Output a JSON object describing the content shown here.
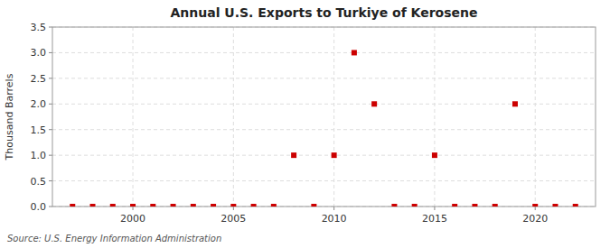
{
  "chart_data": {
    "type": "scatter",
    "title": "Annual U.S. Exports to Turkiye of Kerosene",
    "y_label": "Thousand Barrels",
    "annotation": "Source: U.S. Energy Information Administration",
    "x": [
      1997,
      1998,
      1999,
      2000,
      2001,
      2002,
      2003,
      2004,
      2005,
      2006,
      2007,
      2008,
      2009,
      2010,
      2011,
      2012,
      2013,
      2014,
      2015,
      2016,
      2017,
      2018,
      2019,
      2020,
      2021,
      2022
    ],
    "values": [
      0,
      0,
      0,
      0,
      0,
      0,
      0,
      0,
      0,
      0,
      0,
      1,
      0,
      1,
      3,
      2,
      0,
      0,
      1,
      0,
      0,
      0,
      2,
      0,
      0,
      0
    ],
    "color": "#cc0000",
    "marker": "square",
    "xlim": [
      1996,
      2023
    ],
    "ylim": [
      0,
      3.5
    ],
    "xticks": [
      2000,
      2005,
      2010,
      2015,
      2020
    ],
    "yticks": [
      {
        "value": 0,
        "label": "0.0"
      },
      0.5,
      {
        "value": 1,
        "label": "1.0"
      },
      1.5,
      {
        "value": 2,
        "label": "2.0"
      },
      2.5,
      {
        "value": 3,
        "label": "3.0"
      },
      3.5
    ],
    "grid": true
  }
}
